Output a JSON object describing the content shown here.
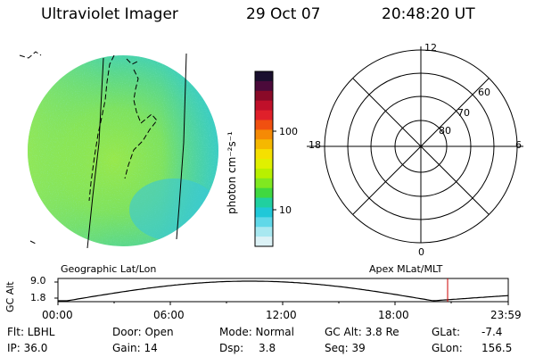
{
  "header": {
    "instrument": "Ultraviolet Imager",
    "date": "29 Oct 07",
    "time": "20:48:20 UT"
  },
  "image_panel": {
    "colorscale": "green-cyan dominant auroral imager disk"
  },
  "colorbar": {
    "unit_label": "photon cm⁻²s⁻¹",
    "ticks": [
      "100",
      "10"
    ],
    "colors": [
      "#1a0f2e",
      "#4b0a3a",
      "#8a0a28",
      "#c0102a",
      "#e0202a",
      "#f05010",
      "#f58a05",
      "#f5b800",
      "#f5e000",
      "#e0f000",
      "#b8f000",
      "#80e820",
      "#40d840",
      "#20d0a0",
      "#20c8d8",
      "#60d8e8",
      "#a8e8f0",
      "#dcf2f6"
    ]
  },
  "polar_plot": {
    "hour_labels": {
      "top": "12",
      "left": "18",
      "right": "6",
      "bottom": "0"
    },
    "lat_labels": [
      "60",
      "70",
      "80"
    ]
  },
  "timeline": {
    "left_label": "Geographic Lat/Lon",
    "right_label": "Apex MLat/MLT",
    "axis_label": "GC Alt",
    "y_ticks": [
      "9.0",
      "1.8"
    ],
    "x_ticks": [
      "00:00",
      "06:00",
      "12:00",
      "18:00",
      "23:59"
    ],
    "marker_color": "#cc0000"
  },
  "footer": {
    "filter": "Flt: LBHL",
    "ip": "IP: 36.0",
    "door": "Door: Open",
    "gain": "Gain: 14",
    "mode": "Mode: Normal",
    "dsp_label": "Dsp:",
    "dsp_value": "3.8",
    "gc_alt": "GC Alt: 3.8 Re",
    "seq": "Seq: 39",
    "glat_label": "GLat:",
    "glat_value": "-7.4",
    "glon_label": "GLon:",
    "glon_value": "156.5"
  }
}
